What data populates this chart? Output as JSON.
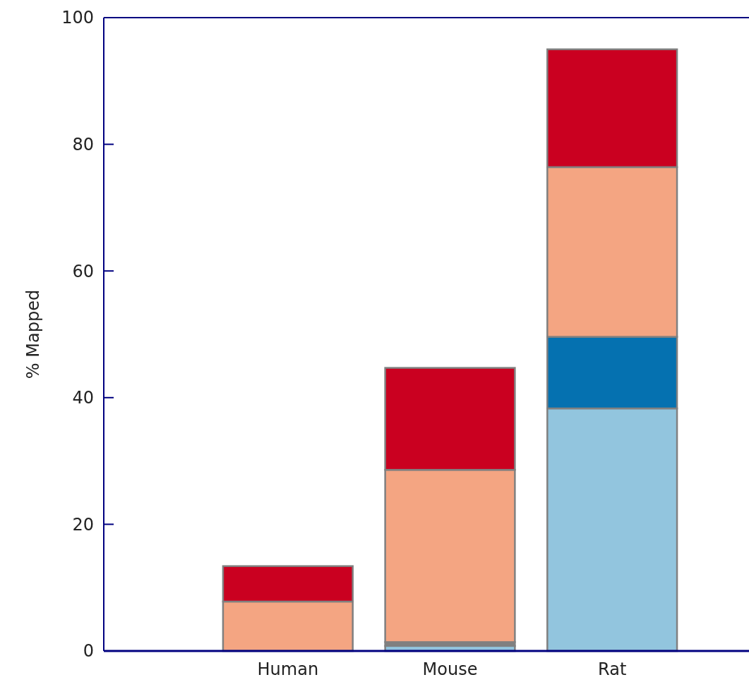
{
  "chart_data": {
    "type": "bar",
    "stacked": true,
    "ylabel": "% Mapped",
    "categories": [
      "Human",
      "Mouse",
      "Rat"
    ],
    "series": [
      {
        "color": "#92c5de",
        "values": [
          0,
          0.8,
          38.3
        ]
      },
      {
        "color": "#808080",
        "values": [
          0,
          0.6,
          0
        ]
      },
      {
        "color": "#0571b0",
        "values": [
          0,
          0,
          11.3
        ]
      },
      {
        "color": "#f4a582",
        "values": [
          7.8,
          27.2,
          26.8
        ]
      },
      {
        "color": "#ca0020",
        "values": [
          5.6,
          16.1,
          18.6
        ]
      }
    ],
    "ylim": [
      0,
      100
    ],
    "yticks": [
      0,
      20,
      40,
      60,
      80,
      100
    ],
    "grid": false
  }
}
